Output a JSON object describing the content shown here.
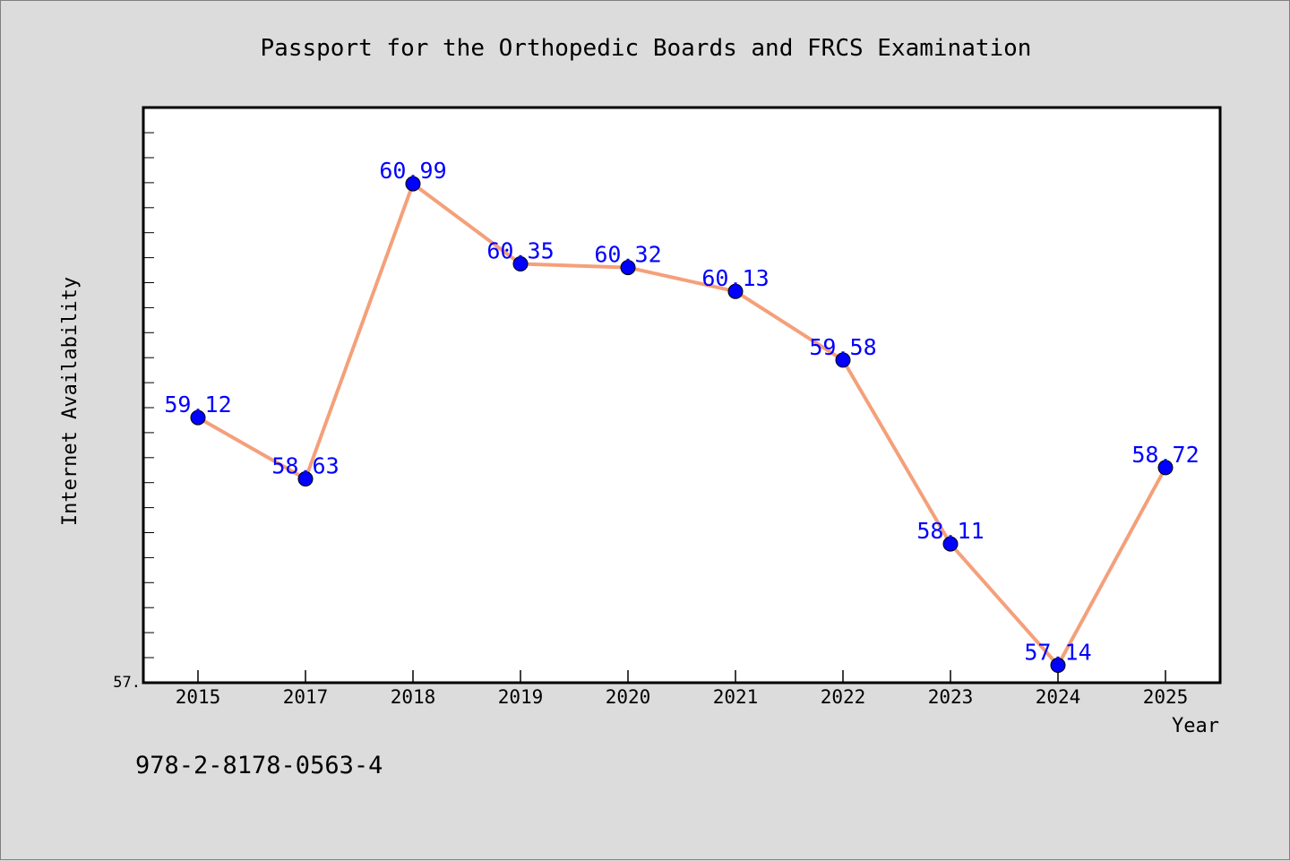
{
  "title": "Passport for the Orthopedic Boards and FRCS Examination",
  "footer": "978-2-8178-0563-4",
  "colors": {
    "background": "#dcdcdc",
    "plot_background": "#ffffff",
    "line": "#f4a07a",
    "marker": "#0000ff",
    "label": "#0000ff"
  },
  "chart_data": {
    "type": "line",
    "title": "Passport for the Orthopedic Boards and FRCS Examination",
    "xlabel": "Year",
    "ylabel": "Internet Availability",
    "categories": [
      "2015",
      "2017",
      "2018",
      "2019",
      "2020",
      "2021",
      "2022",
      "2023",
      "2024",
      "2025"
    ],
    "series": [
      {
        "values": [
          59.12,
          58.63,
          60.99,
          60.35,
          60.32,
          60.13,
          59.58,
          58.11,
          57.14,
          58.72
        ],
        "labels": [
          "59.12",
          "58.63",
          "60.99",
          "60.35",
          "60.32",
          "60.13",
          "59.58",
          "58.11",
          "57.14",
          "58.72"
        ]
      }
    ],
    "ylim": [
      57.0,
      61.6
    ],
    "ytick_labels": [
      "57."
    ],
    "grid": false,
    "legend": "none"
  }
}
